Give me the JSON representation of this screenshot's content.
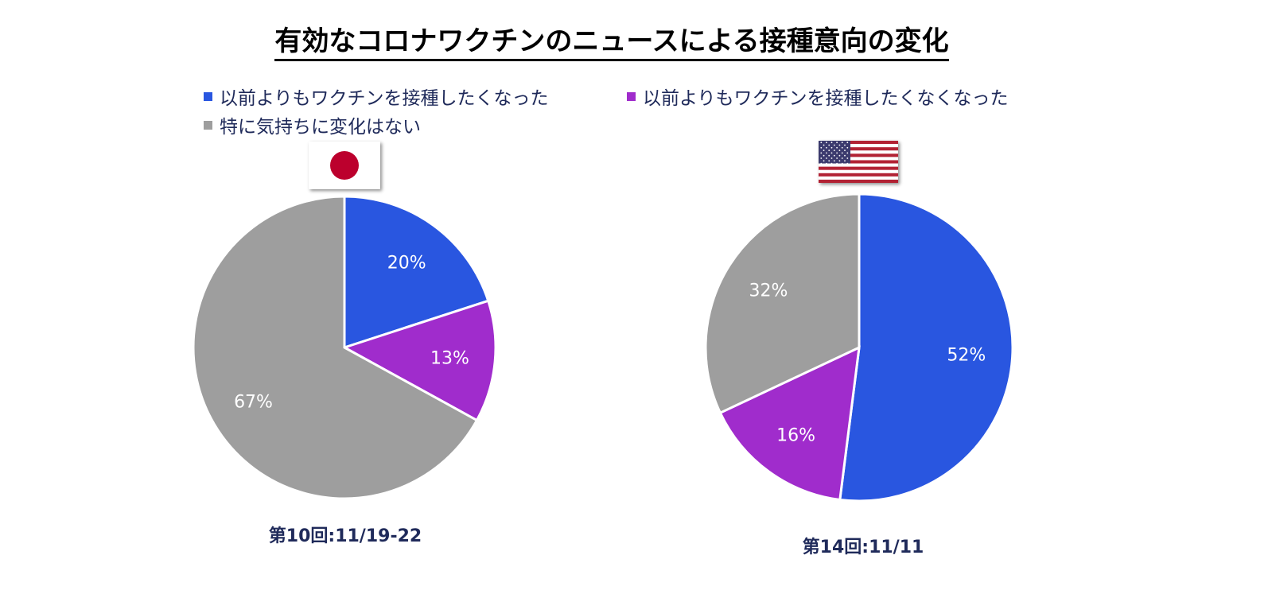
{
  "title": "有効なコロナワクチンのニュースによる接種意向の変化",
  "legend": [
    {
      "label": "以前よりもワクチンを接種したくなった",
      "color": "#2956e0"
    },
    {
      "label": "以前よりもワクチンを接種したくなくなった",
      "color": "#a02ccc"
    },
    {
      "label": "特に気持ちに変化はない",
      "color": "#9e9e9e"
    }
  ],
  "colors": {
    "want": "#2956e0",
    "not_want": "#a02ccc",
    "no_change": "#9e9e9e",
    "japan_red": "#bc002d",
    "us_red": "#b22234",
    "us_blue": "#3c3b6e"
  },
  "flags": {
    "left": "japan-flag",
    "right": "usa-flag"
  },
  "chart_data": [
    {
      "type": "pie",
      "caption": "第10回:11/19-22",
      "slices": [
        {
          "name": "以前よりもワクチンを接種したくなった",
          "value": 20,
          "label": "20%"
        },
        {
          "name": "以前よりもワクチンを接種したくなくなった",
          "value": 13,
          "label": "13%"
        },
        {
          "name": "特に気持ちに変化はない",
          "value": 67,
          "label": "67%"
        }
      ]
    },
    {
      "type": "pie",
      "caption": "第14回:11/11",
      "slices": [
        {
          "name": "以前よりもワクチンを接種したくなった",
          "value": 52,
          "label": "52%"
        },
        {
          "name": "以前よりもワクチンを接種したくなくなった",
          "value": 16,
          "label": "16%"
        },
        {
          "name": "特に気持ちに変化はない",
          "value": 32,
          "label": "32%"
        }
      ]
    }
  ]
}
